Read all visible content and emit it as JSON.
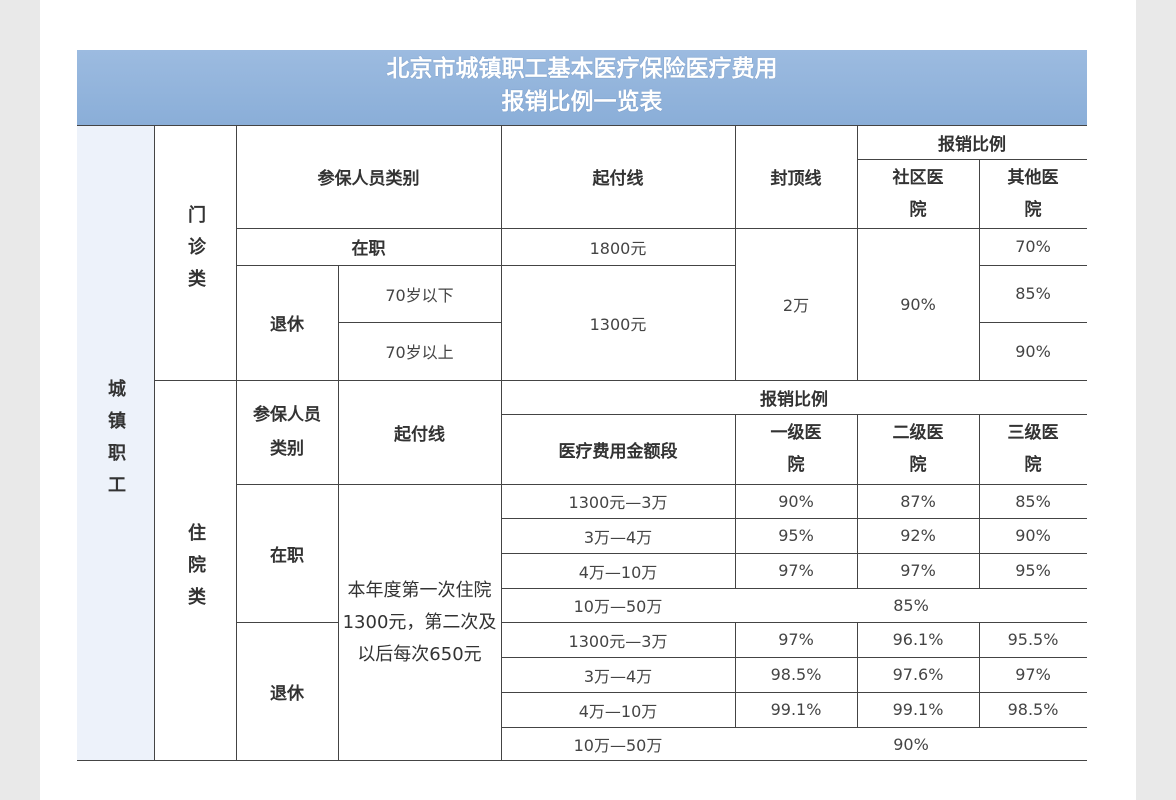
{
  "title": {
    "line1": "北京市城镇职工基本医疗保险医疗费用",
    "line2": "报销比例一览表"
  },
  "category": "城镇职工",
  "outpatient": {
    "label": "门诊类",
    "headers": {
      "person_type": "参保人员类别",
      "deductible": "起付线",
      "cap": "封顶线",
      "ratio": "报销比例",
      "community": "社区医院",
      "other": "其他医院"
    },
    "rows": {
      "employed": {
        "label": "在职",
        "deductible": "1800元",
        "other": "70%"
      },
      "retired": {
        "label": "退休",
        "deductible": "1300元",
        "under70": {
          "label": "70岁以下",
          "other": "85%"
        },
        "over70": {
          "label": "70岁以上",
          "other": "90%"
        }
      }
    },
    "cap_value": "2万",
    "community_value": "90%"
  },
  "inpatient": {
    "label": "住院类",
    "headers": {
      "person_type": "参保人员类别",
      "deductible": "起付线",
      "ratio": "报销比例",
      "amount": "医疗费用金额段",
      "level1": "一级医院",
      "level2": "二级医院",
      "level3": "三级医院"
    },
    "deductible_text": "本年度第一次住院1300元，第二次及以后每次650元",
    "employed": {
      "label": "在职",
      "rows": [
        {
          "range": "1300元—3万",
          "l1": "90%",
          "l2": "87%",
          "l3": "85%"
        },
        {
          "range": "3万—4万",
          "l1": "95%",
          "l2": "92%",
          "l3": "90%"
        },
        {
          "range": "4万—10万",
          "l1": "97%",
          "l2": "97%",
          "l3": "95%"
        },
        {
          "range": "10万—50万",
          "merged": "85%"
        }
      ]
    },
    "retired": {
      "label": "退休",
      "rows": [
        {
          "range": "1300元—3万",
          "l1": "97%",
          "l2": "96.1%",
          "l3": "95.5%"
        },
        {
          "range": "3万—4万",
          "l1": "98.5%",
          "l2": "97.6%",
          "l3": "97%"
        },
        {
          "range": "4万—10万",
          "l1": "99.1%",
          "l2": "99.1%",
          "l3": "98.5%"
        },
        {
          "range": "10万—50万",
          "merged": "90%"
        }
      ]
    }
  }
}
